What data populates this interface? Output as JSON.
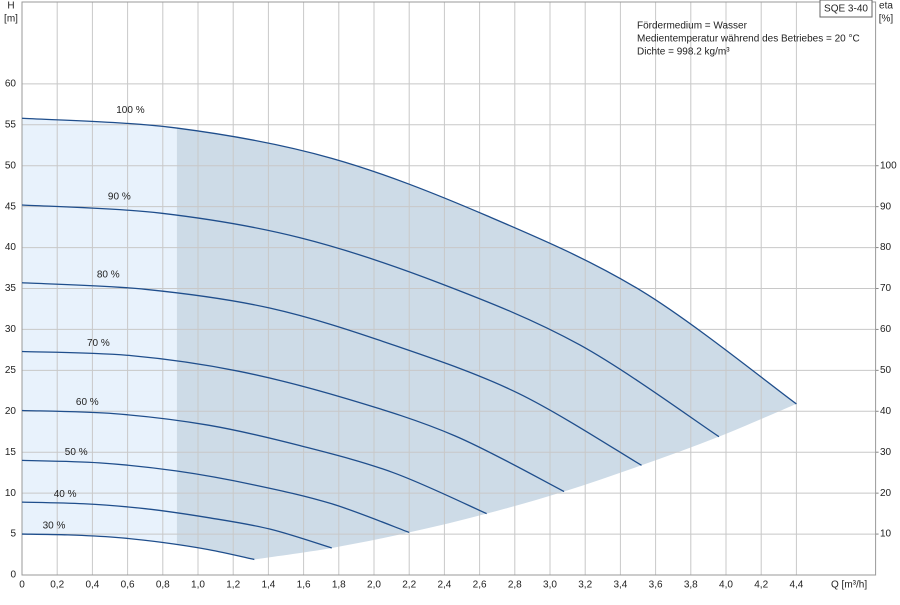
{
  "chart_data": {
    "type": "line",
    "model": "SQE 3-40",
    "notes": [
      "Fördermedium = Wasser",
      "Medientemperatur während des Betriebes = 20 °C",
      "Dichte = 998.2 kg/m³"
    ],
    "y_label": [
      "H",
      "[m]"
    ],
    "y2_label": [
      "eta",
      "[%]"
    ],
    "x_label": "Q [m³/h]",
    "xlim": [
      0,
      4.85
    ],
    "ylim": [
      0,
      70
    ],
    "y2lim": [
      0,
      140
    ],
    "grid": true,
    "area_colors": [
      "#e8f2fc",
      "#cddbe7"
    ],
    "xticks": [
      0,
      {
        "value": 0.2,
        "label": "0,2"
      },
      {
        "value": 0.4,
        "label": "0,4"
      },
      {
        "value": 0.6,
        "label": "0,6"
      },
      {
        "value": 0.8,
        "label": "0,8"
      },
      {
        "value": 1.0,
        "label": "1,0"
      },
      {
        "value": 1.2,
        "label": "1,2"
      },
      {
        "value": 1.4,
        "label": "1,4"
      },
      {
        "value": 1.6,
        "label": "1,6"
      },
      {
        "value": 1.8,
        "label": "1,8"
      },
      {
        "value": 2.0,
        "label": "2,0"
      },
      {
        "value": 2.2,
        "label": "2,2"
      },
      {
        "value": 2.4,
        "label": "2,4"
      },
      {
        "value": 2.6,
        "label": "2,6"
      },
      {
        "value": 2.8,
        "label": "2,8"
      },
      {
        "value": 3.0,
        "label": "3,0"
      },
      {
        "value": 3.2,
        "label": "3,2"
      },
      {
        "value": 3.4,
        "label": "3,4"
      },
      {
        "value": 3.6,
        "label": "3,6"
      },
      {
        "value": 3.8,
        "label": "3,8"
      },
      {
        "value": 4.0,
        "label": "4,0"
      },
      {
        "value": 4.2,
        "label": "4,2"
      },
      {
        "value": 4.4,
        "label": "4,4"
      }
    ],
    "yticks": [
      0,
      5,
      10,
      15,
      20,
      25,
      30,
      35,
      40,
      45,
      50,
      55,
      60
    ],
    "y2ticks": [
      10,
      20,
      30,
      40,
      50,
      60,
      70,
      80,
      90,
      100
    ],
    "series": [
      {
        "name": "100 %",
        "color": "#1f4e8c",
        "x": [
          0,
          0.88,
          1.76,
          2.64,
          3.52,
          4.4
        ],
        "values": [
          55.8,
          54.6,
          50.9,
          43.9,
          34.7,
          20.9
        ]
      },
      {
        "name": "90 %",
        "color": "#1f4e8c",
        "x": [
          0,
          0.79,
          1.58,
          2.38,
          3.17,
          3.96
        ],
        "values": [
          45.2,
          44.2,
          41.2,
          35.6,
          28.1,
          16.9
        ]
      },
      {
        "name": "80 %",
        "color": "#1f4e8c",
        "x": [
          0,
          0.7,
          1.41,
          2.11,
          2.82,
          3.52
        ],
        "values": [
          35.7,
          34.9,
          32.6,
          28.1,
          22.2,
          13.4
        ]
      },
      {
        "name": "70 %",
        "color": "#1f4e8c",
        "x": [
          0,
          0.62,
          1.23,
          1.85,
          2.46,
          3.08
        ],
        "values": [
          27.3,
          26.8,
          24.9,
          21.5,
          17.0,
          10.2
        ]
      },
      {
        "name": "60 %",
        "color": "#1f4e8c",
        "x": [
          0,
          0.53,
          1.06,
          1.58,
          2.11,
          2.64
        ],
        "values": [
          20.1,
          19.7,
          18.3,
          15.8,
          12.5,
          7.5
        ]
      },
      {
        "name": "50 %",
        "color": "#1f4e8c",
        "x": [
          0,
          0.44,
          0.88,
          1.32,
          1.76,
          2.2
        ],
        "values": [
          14.0,
          13.7,
          12.7,
          11.0,
          8.7,
          5.2
        ]
      },
      {
        "name": "40 %",
        "color": "#1f4e8c",
        "x": [
          0,
          0.35,
          0.7,
          1.06,
          1.41,
          1.76
        ],
        "values": [
          8.9,
          8.7,
          8.1,
          7.0,
          5.6,
          3.3
        ]
      },
      {
        "name": "30 %",
        "color": "#1f4e8c",
        "x": [
          0,
          0.26,
          0.53,
          0.79,
          1.06,
          1.32
        ],
        "values": [
          5.0,
          4.9,
          4.6,
          4.0,
          3.1,
          1.9
        ]
      }
    ]
  }
}
